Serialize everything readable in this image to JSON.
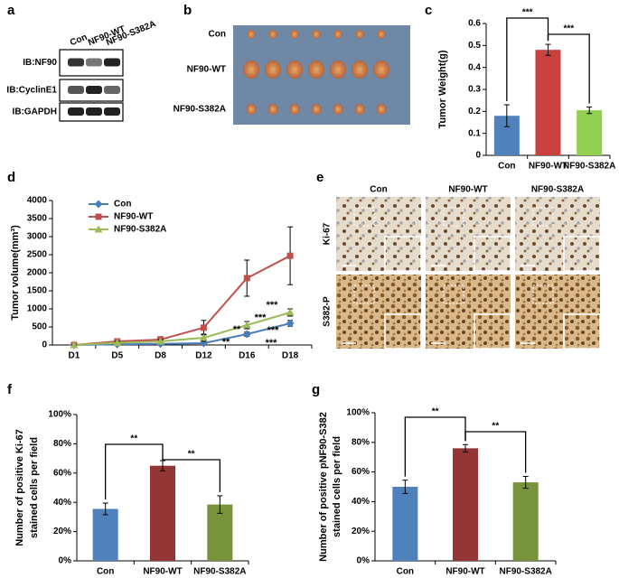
{
  "panel_labels": [
    "a",
    "b",
    "c",
    "d",
    "e",
    "f",
    "g"
  ],
  "blot": {
    "lanes": [
      "Con",
      "NF90-WT",
      "NF90-S382A"
    ],
    "rows": [
      "IB:NF90",
      "IB:CyclinE1",
      "IB:GAPDH"
    ]
  },
  "photo": {
    "rows": [
      "Con",
      "NF90-WT",
      "NF90-S382A"
    ]
  },
  "ihc": {
    "columns": [
      "Con",
      "NF90-WT",
      "NF90-S382A"
    ],
    "rows": [
      "Ki-67",
      "S382-P"
    ]
  },
  "chart_data": [
    {
      "type": "bar",
      "ylabel": [
        "Tumor Weight(g)"
      ],
      "categories": [
        "Con",
        "NF90-WT",
        "NF90-S382A"
      ],
      "values": [
        0.18,
        0.48,
        0.205
      ],
      "errors": [
        0.05,
        0.025,
        0.015
      ],
      "colors": [
        "#4f81bd",
        "#c8413e",
        "#92d050"
      ],
      "ylim": [
        0,
        0.6
      ],
      "yticks": [
        0,
        0.1,
        0.2,
        0.3,
        0.4,
        0.5,
        0.6
      ],
      "brackets": [
        {
          "label": "***",
          "between": [
            "Con",
            "NF90-WT"
          ]
        },
        {
          "label": "***",
          "between": [
            "NF90-WT",
            "NF90-S382A"
          ]
        }
      ]
    },
    {
      "type": "line",
      "ylabel": [
        "Tumor volume(mm³)"
      ],
      "categories": [
        "D1",
        "D5",
        "D8",
        "D12",
        "D16",
        "D18"
      ],
      "series": [
        {
          "name": "Con",
          "color": "#4a7ebb",
          "marker": "diamond",
          "values": [
            0,
            20,
            30,
            50,
            300,
            600
          ],
          "errors": [
            10,
            20,
            20,
            30,
            60,
            80
          ]
        },
        {
          "name": "NF90-WT",
          "color": "#c0504d",
          "marker": "square",
          "values": [
            0,
            100,
            150,
            480,
            1850,
            2470
          ],
          "errors": [
            20,
            60,
            80,
            200,
            500,
            800
          ]
        },
        {
          "name": "NF90-S382A",
          "color": "#9bbb59",
          "marker": "triangle",
          "values": [
            0,
            60,
            100,
            200,
            550,
            900
          ],
          "errors": [
            10,
            40,
            50,
            100,
            100,
            100
          ]
        }
      ],
      "ylim": [
        0,
        4000
      ],
      "yticks": [
        0,
        500,
        1000,
        1500,
        2000,
        2500,
        3000,
        3500,
        4000
      ],
      "legend": "upper left",
      "annotations": [
        "**",
        "***",
        "**",
        "***",
        "***",
        "***"
      ]
    },
    {
      "type": "bar",
      "ylabel": [
        "Number of positive Ki-67",
        "stained cells per field"
      ],
      "categories": [
        "Con",
        "NF90-WT",
        "NF90-S382A"
      ],
      "values": [
        35.5,
        65,
        38.5
      ],
      "errors": [
        4,
        3.5,
        6
      ],
      "colors": [
        "#4f81bd",
        "#943634",
        "#77933c"
      ],
      "ylim": [
        0,
        100
      ],
      "yticks": [
        {
          "value": 0,
          "label": "0%"
        },
        {
          "value": 20,
          "label": "20%"
        },
        {
          "value": 40,
          "label": "40%"
        },
        {
          "value": 60,
          "label": "60%"
        },
        {
          "value": 80,
          "label": "80%"
        },
        {
          "value": 100,
          "label": "100%"
        }
      ],
      "brackets": [
        {
          "label": "**",
          "between": [
            "Con",
            "NF90-WT"
          ]
        },
        {
          "label": "**",
          "between": [
            "NF90-WT",
            "NF90-S382A"
          ]
        }
      ]
    },
    {
      "type": "bar",
      "ylabel": [
        "Number of positive pNF90-S382",
        "stained cells per field"
      ],
      "categories": [
        "Con",
        "NF90-WT",
        "NF90-S382A"
      ],
      "values": [
        50,
        76,
        53
      ],
      "errors": [
        4.5,
        2.5,
        4
      ],
      "colors": [
        "#4f81bd",
        "#943634",
        "#77933c"
      ],
      "ylim": [
        0,
        100
      ],
      "yticks": [
        {
          "value": 0,
          "label": "0%"
        },
        {
          "value": 20,
          "label": "20%"
        },
        {
          "value": 40,
          "label": "40%"
        },
        {
          "value": 60,
          "label": "60%"
        },
        {
          "value": 80,
          "label": "80%"
        },
        {
          "value": 100,
          "label": "100%"
        }
      ],
      "brackets": [
        {
          "label": "**",
          "between": [
            "Con",
            "NF90-WT"
          ]
        },
        {
          "label": "**",
          "between": [
            "NF90-WT",
            "NF90-S382A"
          ]
        }
      ]
    }
  ]
}
